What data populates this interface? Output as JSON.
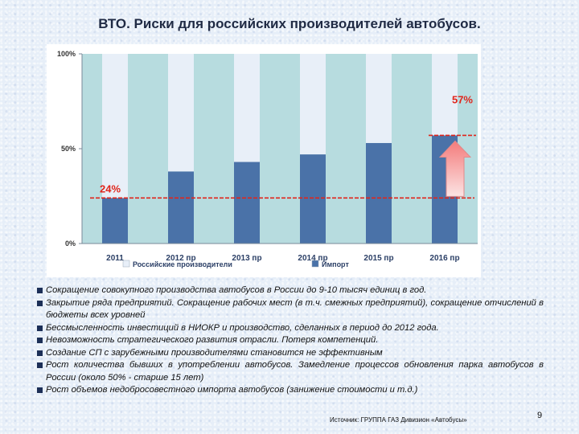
{
  "page": {
    "title": "ВТО. Риски для российских производителей автобусов.",
    "source": "Источник: ГРУППА ГАЗ  Дивизион «Автобусы»",
    "page_number": "9"
  },
  "colors": {
    "background": "#e6eef8",
    "plot_background": "#b7dcdf",
    "domestic_bar": "#e8eff8",
    "import_bar": "#4a72a8",
    "reference_line": "#e0251b",
    "arrow": "#f7a5a5"
  },
  "bullets": [
    "Сокращение совокупного производства автобусов в России до 9-10 тысяч единиц в год.",
    "Закрытие ряда предприятий. Сокращение рабочих мест (в т.ч. смежных предприятий), сокращение отчислений в бюджеты всех уровней",
    "Бессмысленность инвестиций в НИОКР и производство, сделанных в период до 2012 года.",
    "Невозможность стратегического развития отрасли. Потеря компетенций.",
    "Создание СП с зарубежными производителями становится не эффективным",
    "Рост количества бывших в употреблении автобусов. Замедление процессов обновления парка автобусов в России (около 50% - старше 15 лет)",
    "Рост объемов недобросовестного импорта автобусов (занижение стоимости и т.д.)"
  ],
  "chart_data": {
    "type": "bar",
    "stacked": true,
    "categories": [
      "2011",
      "2012 пр",
      "2013 пр",
      "2014 пр",
      "2015 пр",
      "2016 пр"
    ],
    "series": [
      {
        "name": "Импорт",
        "values": [
          24,
          38,
          43,
          47,
          53,
          57
        ]
      },
      {
        "name": "Российские производители",
        "values": [
          76,
          62,
          57,
          53,
          47,
          43
        ]
      }
    ],
    "y_ticks": [
      "0%",
      "50%",
      "100%"
    ],
    "ylim": [
      0,
      100
    ],
    "legend_position": "bottom",
    "annotations": [
      {
        "text": "24%",
        "value": 24
      },
      {
        "text": "57%",
        "value": 57
      }
    ]
  }
}
